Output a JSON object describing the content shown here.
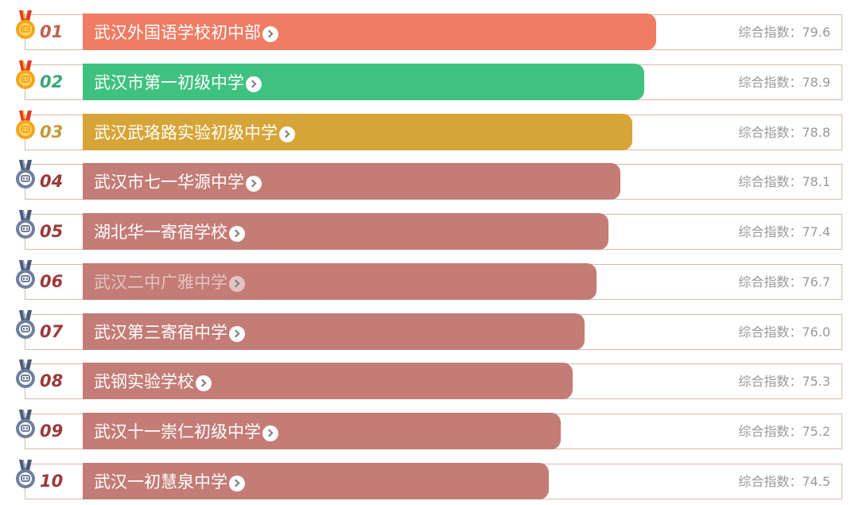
{
  "ranking": {
    "score_label": "综合指数：",
    "items": [
      {
        "rank": "01",
        "name": "武汉外国语学校初中部",
        "score": "79.6",
        "bar_color": "#f07c63",
        "rank_color": "#c0604e",
        "medal": "gold-medal-icon"
      },
      {
        "rank": "02",
        "name": "武汉市第一初级中学",
        "score": "78.9",
        "bar_color": "#3fc27f",
        "rank_color": "#3aa875",
        "medal": "gold-medal-icon"
      },
      {
        "rank": "03",
        "name": "武汉武珞路实验初级中学",
        "score": "78.8",
        "bar_color": "#d7a537",
        "rank_color": "#c69a3b",
        "medal": "gold-medal-icon"
      },
      {
        "rank": "04",
        "name": "武汉市七一华源中学",
        "score": "78.1",
        "bar_color": "#c47c76",
        "rank_color": "#9b3a3a",
        "medal": "silver-medal-icon"
      },
      {
        "rank": "05",
        "name": "湖北华一寄宿学校",
        "score": "77.4",
        "bar_color": "#c47c76",
        "rank_color": "#9b3a3a",
        "medal": "silver-medal-icon"
      },
      {
        "rank": "06",
        "name": "武汉二中广雅中学",
        "score": "76.7",
        "bar_color": "#c47c76",
        "rank_color": "#9b3a3a",
        "medal": "silver-medal-icon"
      },
      {
        "rank": "07",
        "name": "武汉第三寄宿中学",
        "score": "76.0",
        "bar_color": "#c47c76",
        "rank_color": "#9b3a3a",
        "medal": "silver-medal-icon"
      },
      {
        "rank": "08",
        "name": "武钢实验学校",
        "score": "75.3",
        "bar_color": "#c47c76",
        "rank_color": "#9b3a3a",
        "medal": "silver-medal-icon"
      },
      {
        "rank": "09",
        "name": "武汉十一崇仁初级中学",
        "score": "75.2",
        "bar_color": "#c47c76",
        "rank_color": "#9b3a3a",
        "medal": "silver-medal-icon"
      },
      {
        "rank": "10",
        "name": "武汉一初慧泉中学",
        "score": "74.5",
        "bar_color": "#c47c76",
        "rank_color": "#9b3a3a",
        "medal": "silver-medal-icon"
      }
    ]
  }
}
